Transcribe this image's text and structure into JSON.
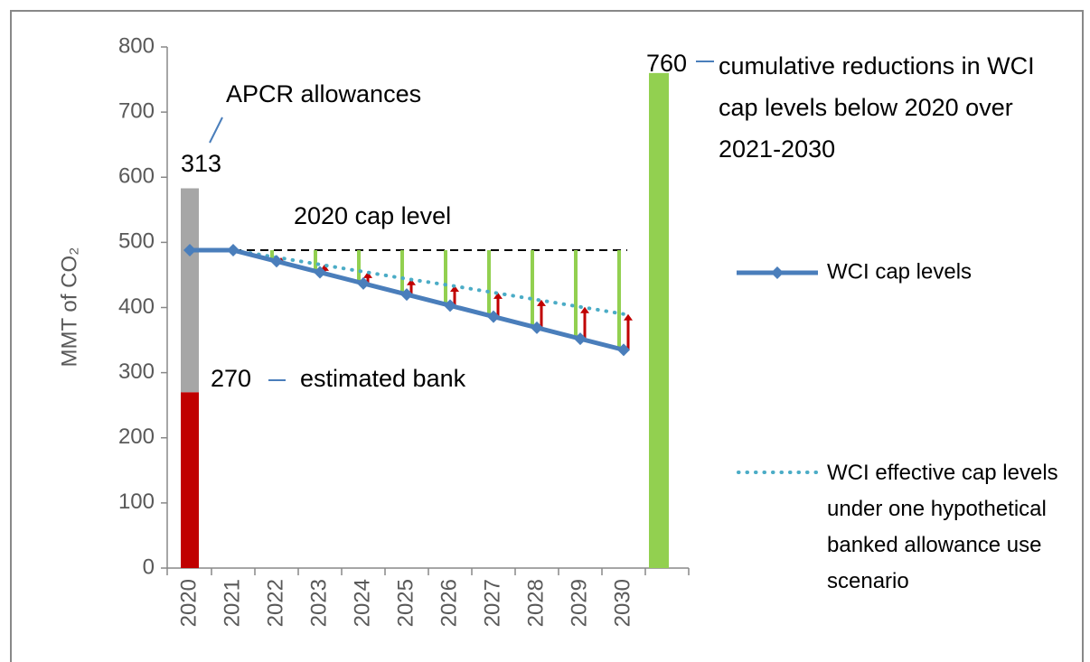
{
  "chart_data": {
    "type": "bar",
    "ylabel": "MMT of CO₂",
    "categories": [
      "2020",
      "2021",
      "2022",
      "2023",
      "2024",
      "2025",
      "2026",
      "2027",
      "2028",
      "2029",
      "2030",
      null
    ],
    "ylim": [
      0,
      800
    ],
    "yticks": [
      0,
      100,
      200,
      300,
      400,
      500,
      600,
      700,
      800
    ],
    "bank": {
      "label": "estimated bank",
      "value": 270,
      "color": "#c00000"
    },
    "apcr": {
      "label": "APCR allowances",
      "value": 313,
      "color": "#a6a6a6"
    },
    "cumulative": {
      "label": "cumulative reductions in WCI cap levels below 2020 over 2021-2030",
      "value": 760,
      "color": "#92d050"
    },
    "reference_label": "2020 cap level",
    "series": [
      {
        "name": "WCI cap levels",
        "color": "#4a7ebb",
        "values": [
          488,
          488,
          471,
          454,
          437,
          420,
          403,
          386,
          369,
          352,
          335,
          null
        ]
      },
      {
        "name": "WCI effective cap levels under one hypothetical banked allowance use scenario",
        "color": "#4bacc6",
        "dotted": true,
        "values": [
          null,
          488,
          477,
          466,
          455,
          444,
          434,
          423,
          412,
          401,
          390,
          null
        ]
      }
    ],
    "reduction_color": "#92d050",
    "arrow_color": "#c00000"
  }
}
